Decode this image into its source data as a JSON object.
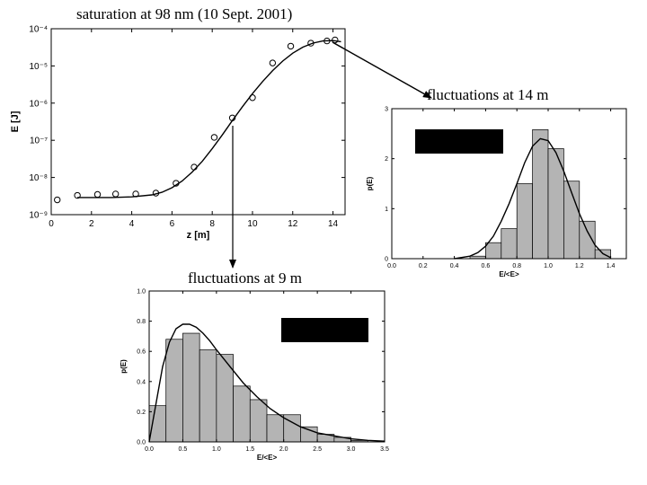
{
  "captions": {
    "saturation": "saturation at 98 nm (10 Sept. 2001)",
    "fluct14": "fluctuations at 14 m",
    "fluct9": "fluctuations at 9 m"
  },
  "colors": {
    "bar_fill": "#b4b4b4",
    "line": "#000000",
    "redaction": "#000000"
  },
  "chart_data": [
    {
      "type": "scatter",
      "id": "energy_vs_z",
      "xlabel": "z  [m]",
      "ylabel": "E  [J]",
      "xlim": [
        0,
        14.6
      ],
      "ylim": [
        1e-09,
        0.0001
      ],
      "y_scale": "log",
      "x_ticks": [
        0,
        2,
        4,
        6,
        8,
        10,
        12,
        14
      ],
      "x_tick_labels": [
        "0",
        "2",
        "4",
        "6",
        "8",
        "10",
        "12",
        "14"
      ],
      "y_ticks": [
        1e-09,
        1e-08,
        1e-07,
        1e-06,
        1e-05,
        0.0001
      ],
      "y_tick_labels": [
        "10⁻⁹",
        "10⁻⁸",
        "10⁻⁷",
        "10⁻⁶",
        "10⁻⁵",
        "10⁻⁴"
      ],
      "series": [
        {
          "kind": "points",
          "marker": "open-circle",
          "x": [
            0.3,
            1.3,
            2.3,
            3.2,
            4.2,
            5.2,
            6.2,
            7.1,
            8.1,
            9.0,
            10.0,
            11.0,
            11.9,
            12.9,
            13.7,
            14.1
          ],
          "y": [
            2.5e-09,
            3.3e-09,
            3.5e-09,
            3.6e-09,
            3.6e-09,
            3.8e-09,
            7e-09,
            1.9e-08,
            1.2e-07,
            4e-07,
            1.4e-06,
            1.2e-05,
            3.4e-05,
            4.1e-05,
            4.7e-05,
            5e-05
          ]
        },
        {
          "kind": "line",
          "x": [
            1.3,
            2,
            3,
            4,
            5,
            5.5,
            6,
            6.5,
            7,
            7.5,
            8,
            8.5,
            9,
            9.5,
            10,
            10.5,
            11,
            11.5,
            12,
            12.5,
            13,
            13.5,
            14,
            14.4
          ],
          "y": [
            2.9e-09,
            2.9e-09,
            2.9e-09,
            3e-09,
            3.4e-09,
            4e-09,
            5.3e-09,
            8e-09,
            1.4e-08,
            2.7e-08,
            6e-08,
            1.4e-07,
            3.4e-07,
            8e-07,
            1.8e-06,
            3.8e-06,
            7.5e-06,
            1.35e-05,
            2.2e-05,
            3.2e-05,
            4.1e-05,
            4.7e-05,
            4.8e-05,
            4.5e-05
          ]
        }
      ]
    },
    {
      "type": "bar",
      "id": "hist_14m",
      "xlabel": "E/<E>",
      "ylabel": "p(E)",
      "xlim": [
        0,
        1.5
      ],
      "ylim": [
        0,
        3
      ],
      "x_ticks": [
        0,
        0.2,
        0.4,
        0.6,
        0.8,
        1.0,
        1.2,
        1.4
      ],
      "x_tick_labels": [
        "0.0",
        "0.2",
        "0.4",
        "0.6",
        "0.8",
        "1.0",
        "1.2",
        "1.4"
      ],
      "y_ticks": [
        0,
        1,
        2,
        3
      ],
      "y_tick_labels": [
        "0",
        "1",
        "2",
        "3"
      ],
      "bin_width": 0.1,
      "bin_starts": [
        0.5,
        0.6,
        0.7,
        0.8,
        0.9,
        1.0,
        1.1,
        1.2,
        1.3
      ],
      "values": [
        0.05,
        0.32,
        0.6,
        1.5,
        2.58,
        2.2,
        1.55,
        0.75,
        0.18
      ],
      "curve": {
        "x": [
          0.4,
          0.5,
          0.55,
          0.6,
          0.65,
          0.7,
          0.75,
          0.8,
          0.85,
          0.9,
          0.95,
          1.0,
          1.05,
          1.1,
          1.15,
          1.2,
          1.25,
          1.3,
          1.35,
          1.4
        ],
        "y": [
          0.0,
          0.05,
          0.12,
          0.25,
          0.45,
          0.75,
          1.1,
          1.5,
          1.92,
          2.25,
          2.4,
          2.36,
          2.12,
          1.75,
          1.32,
          0.9,
          0.55,
          0.27,
          0.1,
          0.02
        ]
      }
    },
    {
      "type": "bar",
      "id": "hist_9m",
      "xlabel": "E/<E>",
      "ylabel": "p(E)",
      "xlim": [
        0,
        3.5
      ],
      "ylim": [
        0,
        1.0
      ],
      "x_ticks": [
        0,
        0.5,
        1.0,
        1.5,
        2.0,
        2.5,
        3.0,
        3.5
      ],
      "x_tick_labels": [
        "0.0",
        "0.5",
        "1.0",
        "1.5",
        "2.0",
        "2.5",
        "3.0",
        "3.5"
      ],
      "y_ticks": [
        0,
        0.2,
        0.4,
        0.6,
        0.8,
        1.0
      ],
      "y_tick_labels": [
        "0.0",
        "0.2",
        "0.4",
        "0.6",
        "0.8",
        "1.0"
      ],
      "bin_width": 0.25,
      "bin_starts": [
        0.0,
        0.25,
        0.5,
        0.75,
        1.0,
        1.25,
        1.5,
        1.75,
        2.0,
        2.25,
        2.5,
        2.75,
        3.0
      ],
      "values": [
        0.24,
        0.68,
        0.72,
        0.61,
        0.58,
        0.37,
        0.28,
        0.18,
        0.18,
        0.1,
        0.05,
        0.03,
        0.01
      ],
      "curve": {
        "x": [
          0.0,
          0.1,
          0.2,
          0.3,
          0.4,
          0.5,
          0.6,
          0.7,
          0.8,
          0.9,
          1.0,
          1.2,
          1.4,
          1.6,
          1.8,
          2.0,
          2.25,
          2.5,
          2.75,
          3.0,
          3.25,
          3.5
        ],
        "y": [
          0.0,
          0.25,
          0.5,
          0.66,
          0.75,
          0.78,
          0.78,
          0.76,
          0.72,
          0.67,
          0.61,
          0.5,
          0.39,
          0.3,
          0.22,
          0.16,
          0.1,
          0.06,
          0.04,
          0.02,
          0.01,
          0.005
        ]
      }
    }
  ]
}
